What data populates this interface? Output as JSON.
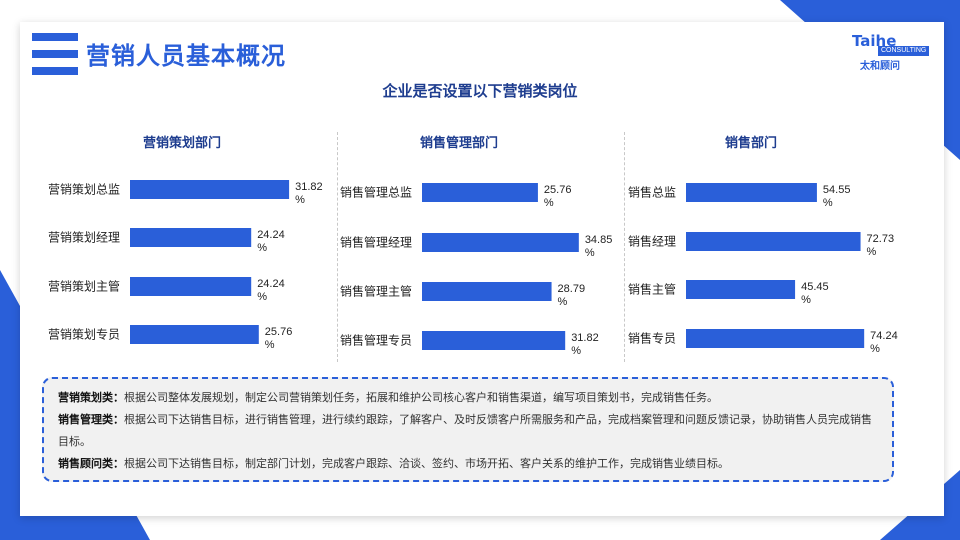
{
  "page": {
    "title": "营销人员基本概况",
    "subtitle": "企业是否设置以下营销类岗位"
  },
  "logo": {
    "main": "Taihe",
    "sub": "CONSULTING",
    "cn": "太和顾问"
  },
  "colors": {
    "brand": "#2a5fd9",
    "bar": "#2a5fd9",
    "panel_title": "#1e3d8f"
  },
  "chart_data": [
    {
      "type": "bar",
      "orientation": "horizontal",
      "title": "营销策划部门",
      "categories": [
        "营销策划总监",
        "营销策划经理",
        "营销策划主管",
        "营销策划专员"
      ],
      "values": [
        31.82,
        24.24,
        24.24,
        25.76
      ],
      "labels": [
        "31.82%",
        "24.24%",
        "24.24%",
        "25.76%"
      ],
      "xlim": [
        0,
        80
      ],
      "grid": false
    },
    {
      "type": "bar",
      "orientation": "horizontal",
      "title": "销售管理部门",
      "categories": [
        "销售管理总监",
        "销售管理经理",
        "销售管理主管",
        "销售管理专员"
      ],
      "values": [
        25.76,
        34.85,
        28.79,
        31.82
      ],
      "labels": [
        "25.76%",
        "34.85%",
        "28.79%",
        "31.82%"
      ],
      "xlim": [
        0,
        80
      ],
      "grid": false
    },
    {
      "type": "bar",
      "orientation": "horizontal",
      "title": "销售部门",
      "categories": [
        "销售总监",
        "销售经理",
        "销售主管",
        "销售专员"
      ],
      "values": [
        54.55,
        72.73,
        45.45,
        74.24
      ],
      "labels": [
        "54.55%",
        "72.73%",
        "45.45%",
        "74.24%"
      ],
      "xlim": [
        0,
        80
      ],
      "grid": false
    }
  ],
  "descriptions": [
    {
      "term": "营销策划类：",
      "text": "根据公司整体发展规划，制定公司营销策划任务，拓展和维护公司核心客户和销售渠道，编写项目策划书，完成销售任务。"
    },
    {
      "term": "销售管理类：",
      "text": "根据公司下达销售目标，进行销售管理，进行续约跟踪，了解客户、及时反馈客户所需服务和产品，完成档案管理和问题反馈记录，协助销售人员完成销售目标。"
    },
    {
      "term": "销售顾问类：",
      "text": "根据公司下达销售目标，制定部门计划，完成客户跟踪、洽谈、签约、市场开拓、客户关系的维护工作，完成销售业绩目标。"
    }
  ]
}
